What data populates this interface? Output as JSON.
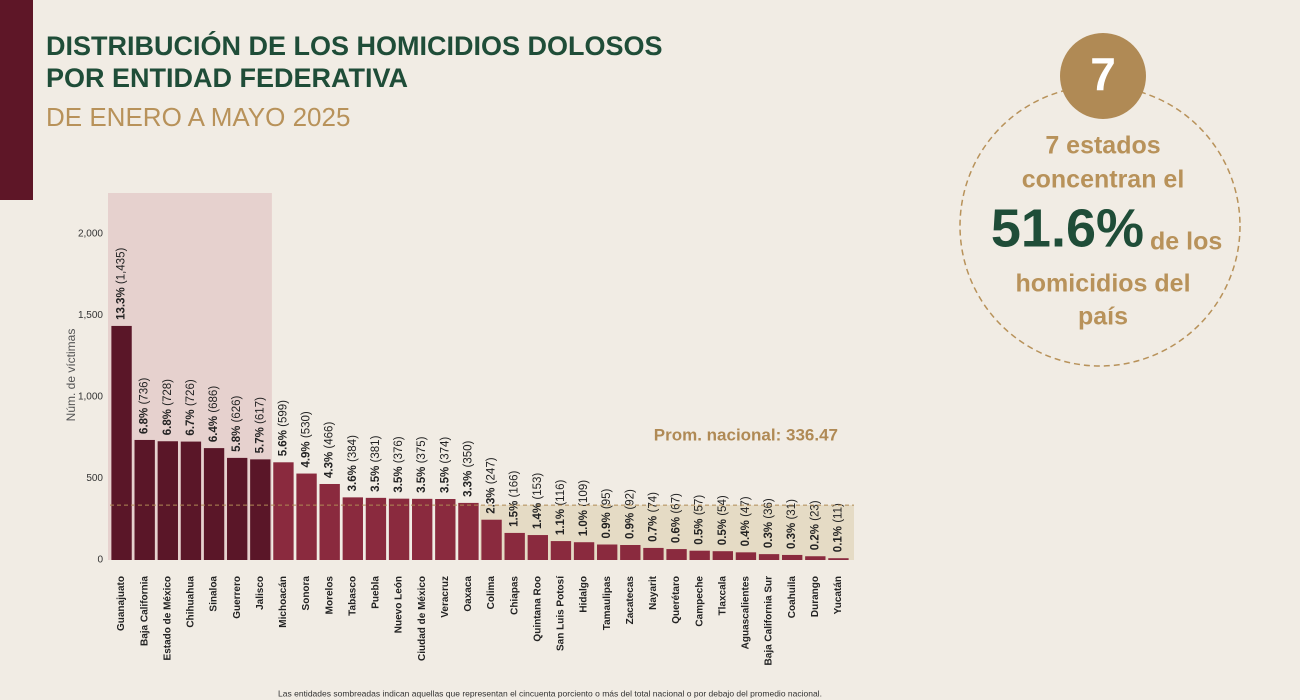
{
  "header": {
    "title_line1": "DISTRIBUCIÓN DE LOS HOMICIDIOS DOLOSOS",
    "title_line2": "POR ENTIDAD FEDERATIVA",
    "subtitle": "DE ENERO A MAYO 2025"
  },
  "callout": {
    "badge": "7",
    "line1": "7 estados",
    "line2": "concentran el",
    "big": "51.6%",
    "after_big": "de los",
    "line4": "homicidios del",
    "line5": "país"
  },
  "chart_data": {
    "type": "bar",
    "ylabel": "Núm. de víctimas",
    "categories": [
      "Guanajuato",
      "Baja California",
      "Estado de México",
      "Chihuahua",
      "Sinaloa",
      "Guerrero",
      "Jalisco",
      "Michoacán",
      "Sonora",
      "Morelos",
      "Tabasco",
      "Puebla",
      "Nuevo León",
      "Ciudad de México",
      "Veracruz",
      "Oaxaca",
      "Colima",
      "Chiapas",
      "Quintana Roo",
      "San Luis Potosí",
      "Hidalgo",
      "Tamaulipas",
      "Zacatecas",
      "Nayarit",
      "Querétaro",
      "Campeche",
      "Tlaxcala",
      "Aguascalientes",
      "Baja California Sur",
      "Coahuila",
      "Durango",
      "Yucatán"
    ],
    "values": [
      1435,
      736,
      728,
      726,
      686,
      626,
      617,
      599,
      530,
      466,
      384,
      381,
      376,
      375,
      374,
      350,
      247,
      166,
      153,
      116,
      109,
      95,
      92,
      74,
      67,
      57,
      54,
      47,
      36,
      31,
      23,
      11
    ],
    "value_labels": [
      "13.3% (1,435)",
      "6.8% (736)",
      "6.8% (728)",
      "6.7% (726)",
      "6.4% (686)",
      "5.8% (626)",
      "5.7% (617)",
      "5.6% (599)",
      "4.9% (530)",
      "4.3% (466)",
      "3.6% (384)",
      "3.5% (381)",
      "3.5% (376)",
      "3.5% (375)",
      "3.5% (374)",
      "3.3% (350)",
      "2.3% (247)",
      "1.5% (166)",
      "1.4% (153)",
      "1.1% (116)",
      "1.0% (109)",
      "0.9% (95)",
      "0.9% (92)",
      "0.7% (74)",
      "0.6% (67)",
      "0.5% (57)",
      "0.5% (54)",
      "0.4% (47)",
      "0.3% (36)",
      "0.3% (31)",
      "0.2% (23)",
      "0.1% (11)"
    ],
    "colors": [
      "#5a1628",
      "#5a1628",
      "#5a1628",
      "#5a1628",
      "#5a1628",
      "#5a1628",
      "#5a1628",
      "#8a2a3e",
      "#8a2a3e",
      "#8a2a3e",
      "#8a2a3e",
      "#8a2a3e",
      "#8a2a3e",
      "#8a2a3e",
      "#8a2a3e",
      "#8a2a3e",
      "#8a2a3e",
      "#8a2a3e",
      "#8a2a3e",
      "#8a2a3e",
      "#8a2a3e",
      "#8a2a3e",
      "#8a2a3e",
      "#8a2a3e",
      "#8a2a3e",
      "#8a2a3e",
      "#8a2a3e",
      "#8a2a3e",
      "#8a2a3e",
      "#8a2a3e",
      "#8a2a3e",
      "#8a2a3e"
    ],
    "ylim": [
      0,
      2250
    ],
    "yticks": [
      0,
      500,
      {
        "value": 1000,
        "label": "1,000"
      },
      {
        "value": 1500,
        "label": "1,500"
      },
      {
        "value": 2000,
        "label": "2,000"
      }
    ],
    "average": {
      "value": 336.47,
      "label": "Prom. nacional: 336.47"
    },
    "footnote": "Las entidades sombreadas indican aquellas que representan el cincuenta porciento o más del total nacional o por debajo del promedio nacional."
  }
}
